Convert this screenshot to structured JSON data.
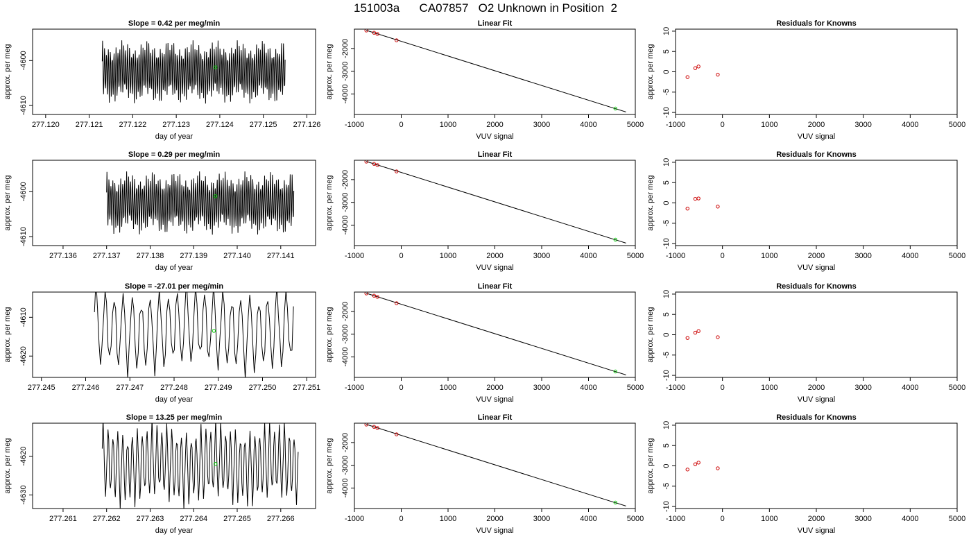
{
  "main_title": "151003a      CA07857   O2 Unknown in Position  2",
  "colors": {
    "trace": "#000000",
    "known_point": "#cc0000",
    "unknown_point": "#00cc00",
    "fit_line": "#000000"
  },
  "chart_data": [
    {
      "type": "line",
      "title": "Slope =  0.42  per meg/min",
      "xlabel": "day of year",
      "ylabel": "approx. per meg",
      "xticks": [
        "277.120",
        "277.121",
        "277.122",
        "277.123",
        "277.124",
        "277.125",
        "277.126"
      ],
      "yticks": [
        "-4600",
        "-4610"
      ],
      "xlim": [
        277.1197,
        277.1262
      ],
      "ylim": [
        -4612,
        -4593
      ],
      "trace": {
        "x_start": 277.1213,
        "x_end": 277.1255,
        "y_center": -4602.5,
        "amplitude": 6.5,
        "cycles": 95
      },
      "unknown_point": {
        "x": 277.1239,
        "y": -4601.5
      }
    },
    {
      "type": "scatter",
      "title": "Linear Fit",
      "xlabel": "VUV signal",
      "ylabel": "approx. per meg",
      "xticks": [
        "-1000",
        "0",
        "1000",
        "2000",
        "3000",
        "4000",
        "5000"
      ],
      "yticks": [
        "-2000",
        "-3000",
        "-4000"
      ],
      "xlim": [
        -1000,
        5000
      ],
      "ylim": [
        -4900,
        -1150
      ],
      "fit_line": {
        "x": [
          -750,
          4800
        ],
        "y": [
          -1200,
          -4790
        ]
      },
      "known_points": {
        "x": [
          -745,
          -580,
          -510,
          -100
        ],
        "y": [
          -1210,
          -1310,
          -1360,
          -1640
        ]
      },
      "unknown_point": {
        "x": 4575,
        "y": -4640
      }
    },
    {
      "type": "scatter",
      "title": "Residuals for Knowns",
      "xlabel": "VUV signal",
      "ylabel": "approx. per meg",
      "xticks": [
        "-1000",
        "0",
        "1000",
        "2000",
        "3000",
        "4000",
        "5000"
      ],
      "yticks": [
        "-10",
        "-5",
        "0",
        "5",
        "10"
      ],
      "xlim": [
        -1000,
        5000
      ],
      "ylim": [
        -10.5,
        10.5
      ],
      "known_points": {
        "x": [
          -745,
          -580,
          -510,
          -100
        ],
        "y": [
          -1.3,
          0.9,
          1.3,
          -0.7
        ]
      }
    },
    {
      "type": "line",
      "title": "Slope =  0.29  per meg/min",
      "xlabel": "day of year",
      "ylabel": "approx. per meg",
      "xticks": [
        "277.136",
        "277.137",
        "277.138",
        "277.139",
        "277.140",
        "277.141"
      ],
      "yticks": [
        "-4600",
        "-4610"
      ],
      "xlim": [
        277.1353,
        277.1418
      ],
      "ylim": [
        -4612,
        -4593
      ],
      "trace": {
        "x_start": 277.137,
        "x_end": 277.1413,
        "y_center": -4602.5,
        "amplitude": 6.5,
        "cycles": 95
      },
      "unknown_point": {
        "x": 277.1395,
        "y": -4601
      }
    },
    {
      "type": "scatter",
      "title": "Linear Fit",
      "xlabel": "VUV signal",
      "ylabel": "approx. per meg",
      "xticks": [
        "-1000",
        "0",
        "1000",
        "2000",
        "3000",
        "4000",
        "5000"
      ],
      "yticks": [
        "-2000",
        "-3000",
        "-4000"
      ],
      "xlim": [
        -1000,
        5000
      ],
      "ylim": [
        -4900,
        -1150
      ],
      "fit_line": {
        "x": [
          -750,
          4800
        ],
        "y": [
          -1200,
          -4790
        ]
      },
      "known_points": {
        "x": [
          -745,
          -580,
          -510,
          -100
        ],
        "y": [
          -1210,
          -1310,
          -1360,
          -1640
        ]
      },
      "unknown_point": {
        "x": 4575,
        "y": -4640
      }
    },
    {
      "type": "scatter",
      "title": "Residuals for Knowns",
      "xlabel": "VUV signal",
      "ylabel": "approx. per meg",
      "xticks": [
        "-1000",
        "0",
        "1000",
        "2000",
        "3000",
        "4000",
        "5000"
      ],
      "yticks": [
        "-10",
        "-5",
        "0",
        "5",
        "10"
      ],
      "xlim": [
        -1000,
        5000
      ],
      "ylim": [
        -10.5,
        10.5
      ],
      "known_points": {
        "x": [
          -745,
          -580,
          -510,
          -100
        ],
        "y": [
          -1.4,
          1.0,
          1.1,
          -0.9
        ]
      }
    },
    {
      "type": "line",
      "title": "Slope =  -27.01  per meg/min",
      "xlabel": "day of year",
      "ylabel": "approx. per meg",
      "xticks": [
        "277.245",
        "277.246",
        "277.247",
        "277.248",
        "277.249",
        "277.250",
        "277.251"
      ],
      "yticks": [
        "-4610",
        "-4620"
      ],
      "xlim": [
        277.2448,
        277.2512
      ],
      "ylim": [
        -4625.5,
        -4603.5
      ],
      "trace": {
        "x_start": 277.2462,
        "x_end": 277.2507,
        "y_center": -4613,
        "amplitude": 12,
        "cycles": 22
      },
      "unknown_point": {
        "x": 277.2489,
        "y": -4613.5
      }
    },
    {
      "type": "scatter",
      "title": "Linear Fit",
      "xlabel": "VUV signal",
      "ylabel": "approx. per meg",
      "xticks": [
        "-1000",
        "0",
        "1000",
        "2000",
        "3000",
        "4000",
        "5000"
      ],
      "yticks": [
        "-2000",
        "-3000",
        "-4000"
      ],
      "xlim": [
        -1000,
        5000
      ],
      "ylim": [
        -4900,
        -1150
      ],
      "fit_line": {
        "x": [
          -750,
          4800
        ],
        "y": [
          -1200,
          -4790
        ]
      },
      "known_points": {
        "x": [
          -745,
          -580,
          -510,
          -100
        ],
        "y": [
          -1210,
          -1310,
          -1360,
          -1640
        ]
      },
      "unknown_point": {
        "x": 4575,
        "y": -4640
      }
    },
    {
      "type": "scatter",
      "title": "Residuals for Knowns",
      "xlabel": "VUV signal",
      "ylabel": "approx. per meg",
      "xticks": [
        "-1000",
        "0",
        "1000",
        "2000",
        "3000",
        "4000",
        "5000"
      ],
      "yticks": [
        "-10",
        "-5",
        "0",
        "5",
        "10"
      ],
      "xlim": [
        -1000,
        5000
      ],
      "ylim": [
        -10.5,
        10.5
      ],
      "known_points": {
        "x": [
          -745,
          -580,
          -510,
          -100
        ],
        "y": [
          -0.8,
          0.5,
          0.9,
          -0.6
        ]
      }
    },
    {
      "type": "line",
      "title": "Slope =  13.25  per meg/min",
      "xlabel": "day of year",
      "ylabel": "approx. per meg",
      "xticks": [
        "277.261",
        "277.262",
        "277.263",
        "277.264",
        "277.265",
        "277.266"
      ],
      "yticks": [
        "-4620",
        "-4630"
      ],
      "xlim": [
        277.2603,
        277.2668
      ],
      "ylim": [
        -4633.5,
        -4611.5
      ],
      "trace": {
        "x_start": 277.2619,
        "x_end": 277.2664,
        "y_center": -4622,
        "amplitude": 11,
        "cycles": 40
      },
      "unknown_point": {
        "x": 277.2645,
        "y": -4622
      }
    },
    {
      "type": "scatter",
      "title": "Linear Fit",
      "xlabel": "VUV signal",
      "ylabel": "approx. per meg",
      "xticks": [
        "-1000",
        "0",
        "1000",
        "2000",
        "3000",
        "4000",
        "5000"
      ],
      "yticks": [
        "-2000",
        "-3000",
        "-4000"
      ],
      "xlim": [
        -1000,
        5000
      ],
      "ylim": [
        -4900,
        -1150
      ],
      "fit_line": {
        "x": [
          -750,
          4800
        ],
        "y": [
          -1200,
          -4790
        ]
      },
      "known_points": {
        "x": [
          -745,
          -580,
          -510,
          -100
        ],
        "y": [
          -1210,
          -1310,
          -1360,
          -1640
        ]
      },
      "unknown_point": {
        "x": 4575,
        "y": -4640
      }
    },
    {
      "type": "scatter",
      "title": "Residuals for Knowns",
      "xlabel": "VUV signal",
      "ylabel": "approx. per meg",
      "xticks": [
        "-1000",
        "0",
        "1000",
        "2000",
        "3000",
        "4000",
        "5000"
      ],
      "yticks": [
        "-10",
        "-5",
        "0",
        "5",
        "10"
      ],
      "xlim": [
        -1000,
        5000
      ],
      "ylim": [
        -10.5,
        10.5
      ],
      "known_points": {
        "x": [
          -745,
          -580,
          -510,
          -100
        ],
        "y": [
          -0.9,
          0.4,
          0.8,
          -0.6
        ]
      }
    }
  ]
}
